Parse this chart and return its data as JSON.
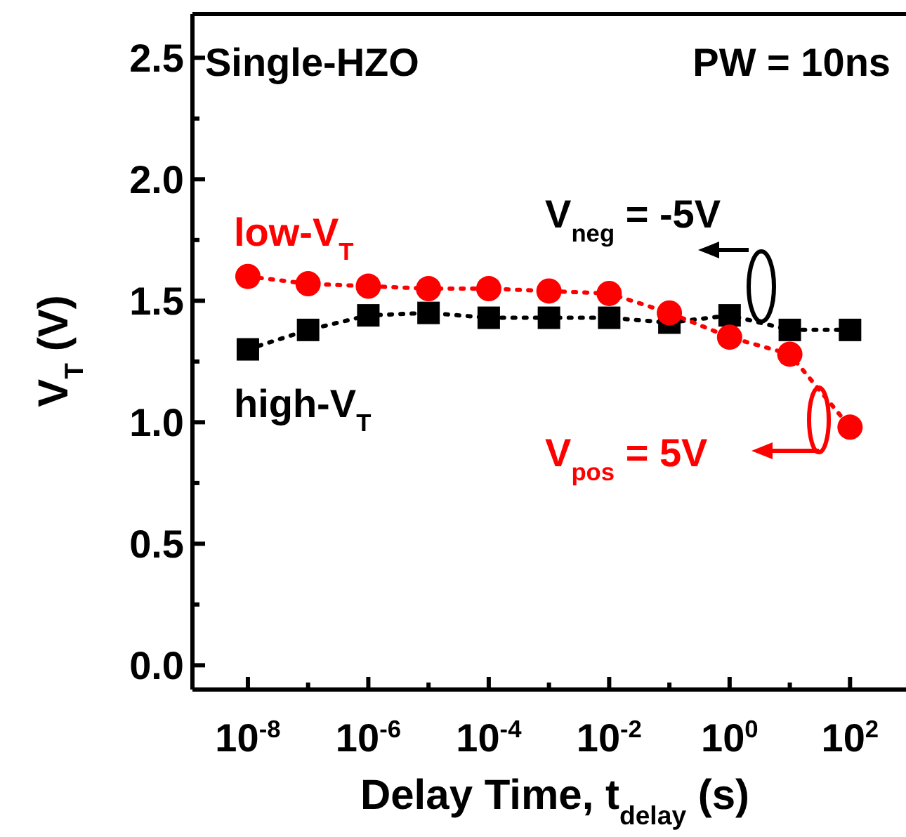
{
  "chart_data": {
    "type": "line",
    "xlabel": "Delay Time, t$_{delay}$ (s)",
    "ylabel": "V$_{T}$ (V)",
    "log": "x",
    "x": [
      1e-08,
      1e-07,
      1e-06,
      1e-05,
      0.0001,
      0.001,
      0.01,
      0.1,
      1,
      10,
      100
    ],
    "xlim": [
      1.2e-09,
      850
    ],
    "xticks": [
      {
        "value": 1e-08,
        "label": "10$^{-8}$"
      },
      {
        "value": 1e-07,
        "label": null
      },
      {
        "value": 1e-06,
        "label": "10$^{-6}$"
      },
      {
        "value": 1e-05,
        "label": null
      },
      {
        "value": 0.0001,
        "label": "10$^{-4}$"
      },
      {
        "value": 0.001,
        "label": null
      },
      {
        "value": 0.01,
        "label": "10$^{-2}$"
      },
      {
        "value": 0.1,
        "label": null
      },
      {
        "value": 1,
        "label": "10$^{0}$"
      },
      {
        "value": 10,
        "label": null
      },
      {
        "value": 100,
        "label": "10$^{2}$"
      }
    ],
    "ylim": [
      -0.1,
      2.68
    ],
    "yticks": [
      {
        "value": 0,
        "label": "0.0"
      },
      {
        "value": 0.25,
        "label": null
      },
      0.5,
      {
        "value": 0.75,
        "label": null
      },
      {
        "value": 1,
        "label": "1.0"
      },
      {
        "value": 1.25,
        "label": null
      },
      1.5,
      {
        "value": 1.75,
        "label": null
      },
      {
        "value": 2,
        "label": "2.0"
      },
      {
        "value": 2.25,
        "label": null
      },
      2.5
    ],
    "grid": false,
    "line_style": "dotted",
    "series": [
      {
        "name": "low-V$_{T}$",
        "color": "#ff0000",
        "marker": "circle",
        "values": [
          1.6,
          1.57,
          1.56,
          1.55,
          1.55,
          1.54,
          1.53,
          1.45,
          1.35,
          1.28,
          0.98
        ]
      },
      {
        "name": "high-V$_{T}$",
        "color": "#000000",
        "marker": "square",
        "values": [
          1.3,
          1.38,
          1.44,
          1.45,
          1.43,
          1.43,
          1.43,
          1.41,
          1.44,
          1.38,
          1.38
        ]
      }
    ],
    "annotations": [
      "Single-HZO",
      "PW = 10ns",
      "V$_{neg}$ = -5V",
      "V$_{pos}$ = 5V"
    ]
  }
}
